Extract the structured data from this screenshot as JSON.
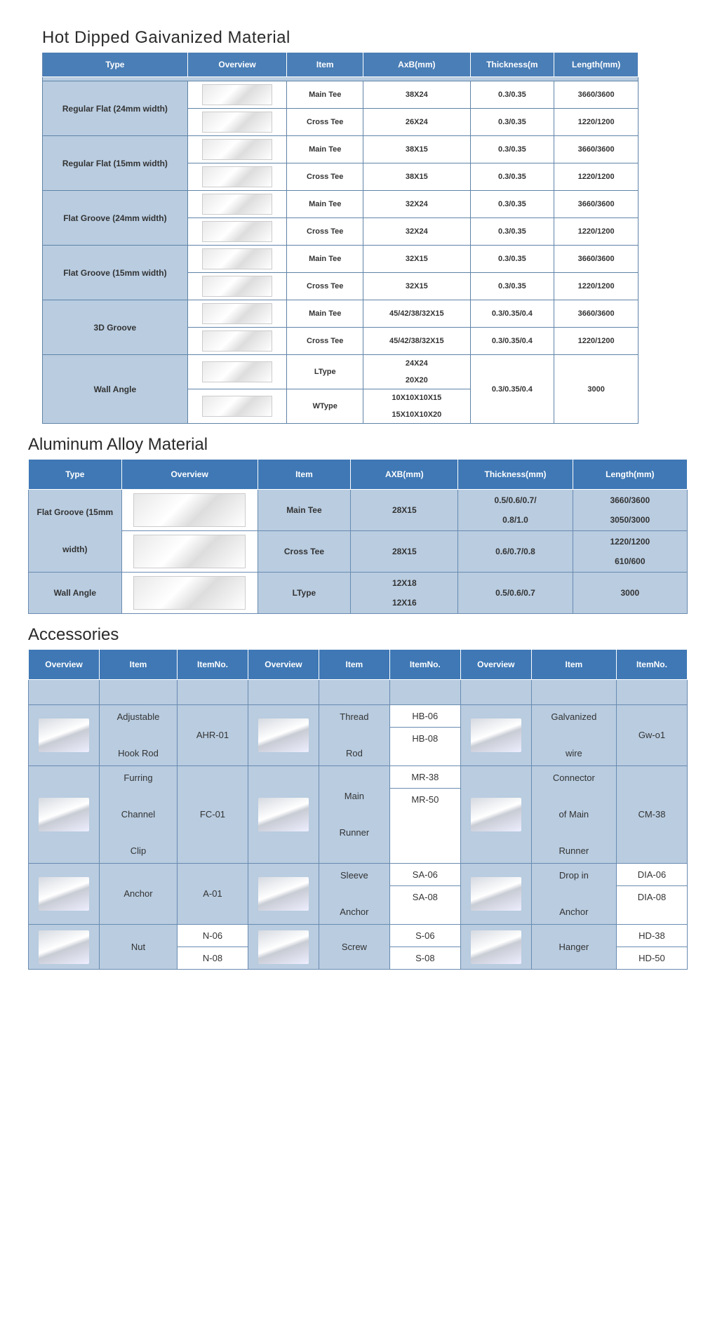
{
  "sections": {
    "s1": {
      "title": "Hot Dipped Gaivanized Material"
    },
    "s2": {
      "title": "Aluminum Alloy Material"
    },
    "s3": {
      "title": "Accessories"
    }
  },
  "t1": {
    "headers": [
      "Type",
      "Overview",
      "Item",
      "AxB(mm)",
      "Thickness(m",
      "Length(mm)"
    ],
    "rows": [
      {
        "type": "Regular Flat (24mm width)",
        "r": [
          {
            "item": "Main Tee",
            "axb": "38X24",
            "th": "0.3/0.35",
            "len": "3660/3600"
          },
          {
            "item": "Cross Tee",
            "axb": "26X24",
            "th": "0.3/0.35",
            "len": "1220/1200"
          }
        ]
      },
      {
        "type": "Regular Flat (15mm width)",
        "r": [
          {
            "item": "Main Tee",
            "axb": "38X15",
            "th": "0.3/0.35",
            "len": "3660/3600"
          },
          {
            "item": "Cross Tee",
            "axb": "38X15",
            "th": "0.3/0.35",
            "len": "1220/1200"
          }
        ]
      },
      {
        "type": "Flat Groove (24mm width)",
        "r": [
          {
            "item": "Main Tee",
            "axb": "32X24",
            "th": "0.3/0.35",
            "len": "3660/3600"
          },
          {
            "item": "Cross Tee",
            "axb": "32X24",
            "th": "0.3/0.35",
            "len": "1220/1200"
          }
        ]
      },
      {
        "type": "Flat Groove (15mm width)",
        "r": [
          {
            "item": "Main Tee",
            "axb": "32X15",
            "th": "0.3/0.35",
            "len": "3660/3600"
          },
          {
            "item": "Cross Tee",
            "axb": "32X15",
            "th": "0.3/0.35",
            "len": "1220/1200"
          }
        ]
      },
      {
        "type": "3D Groove",
        "r": [
          {
            "item": "Main Tee",
            "axb": "45/42/38/32X15",
            "th": "0.3/0.35/0.4",
            "len": "3660/3600"
          },
          {
            "item": "Cross Tee",
            "axb": "45/42/38/32X15",
            "th": "0.3/0.35/0.4",
            "len": "1220/1200"
          }
        ]
      }
    ],
    "wall": {
      "type": "Wall Angle",
      "l_item": "LType",
      "l_axb1": "24X24",
      "l_axb2": "20X20",
      "w_item": "WType",
      "w_axb1": "10X10X10X15",
      "w_axb2": "15X10X10X20",
      "th": "0.3/0.35/0.4",
      "len": "3000"
    }
  },
  "t2": {
    "headers": [
      "Type",
      "Overview",
      "Item",
      "AXB(mm)",
      "Thickness(mm)",
      "Length(mm)"
    ],
    "rows": [
      {
        "type": "Flat Groove (15mm width)",
        "r": [
          {
            "item": "Main Tee",
            "axb": "28X15",
            "th1": "0.5/0.6/0.7/",
            "th2": "0.8/1.0",
            "len1": "3660/3600",
            "len2": "3050/3000"
          },
          {
            "item": "Cross Tee",
            "axb": "28X15",
            "th1": "0.6/0.7/0.8",
            "th2": "",
            "len1": "1220/1200",
            "len2": "610/600"
          }
        ]
      },
      {
        "type": "Wall Angle",
        "single": true,
        "item": "LType",
        "axb1": "12X18",
        "axb2": "12X16",
        "th": "0.5/0.6/0.7",
        "len": "3000"
      }
    ]
  },
  "t3": {
    "headers": [
      "Overview",
      "Item",
      "ItemNo.",
      "Overview",
      "Item",
      "ItemNo.",
      "Overview",
      "Item",
      "ItemNo."
    ],
    "rows": [
      [
        {
          "item": "Adjustable Hook Rod",
          "nos": [
            "AHR-01"
          ]
        },
        {
          "item": "Thread Rod",
          "nos": [
            "HB-06",
            "HB-08"
          ]
        },
        {
          "item": "Galvanized wire",
          "nos": [
            "Gw-o1"
          ]
        }
      ],
      [
        {
          "item": "Furring Channel Clip",
          "nos": [
            "FC-01"
          ]
        },
        {
          "item": "Main Runner",
          "nos": [
            "MR-38",
            "MR-50"
          ]
        },
        {
          "item": "Connector of Main Runner",
          "nos": [
            "CM-38"
          ]
        }
      ],
      [
        {
          "item": "Anchor",
          "nos": [
            "A-01"
          ]
        },
        {
          "item": "Sleeve Anchor",
          "nos": [
            "SA-06",
            "SA-08"
          ]
        },
        {
          "item": "Drop in Anchor",
          "nos": [
            "DIA-06",
            "DIA-08"
          ]
        }
      ],
      [
        {
          "item": "Nut",
          "nos": [
            "N-06",
            "N-08"
          ]
        },
        {
          "item": "Screw",
          "nos": [
            "S-06",
            "S-08"
          ]
        },
        {
          "item": "Hanger",
          "nos": [
            "HD-38",
            "HD-50"
          ]
        }
      ]
    ]
  }
}
